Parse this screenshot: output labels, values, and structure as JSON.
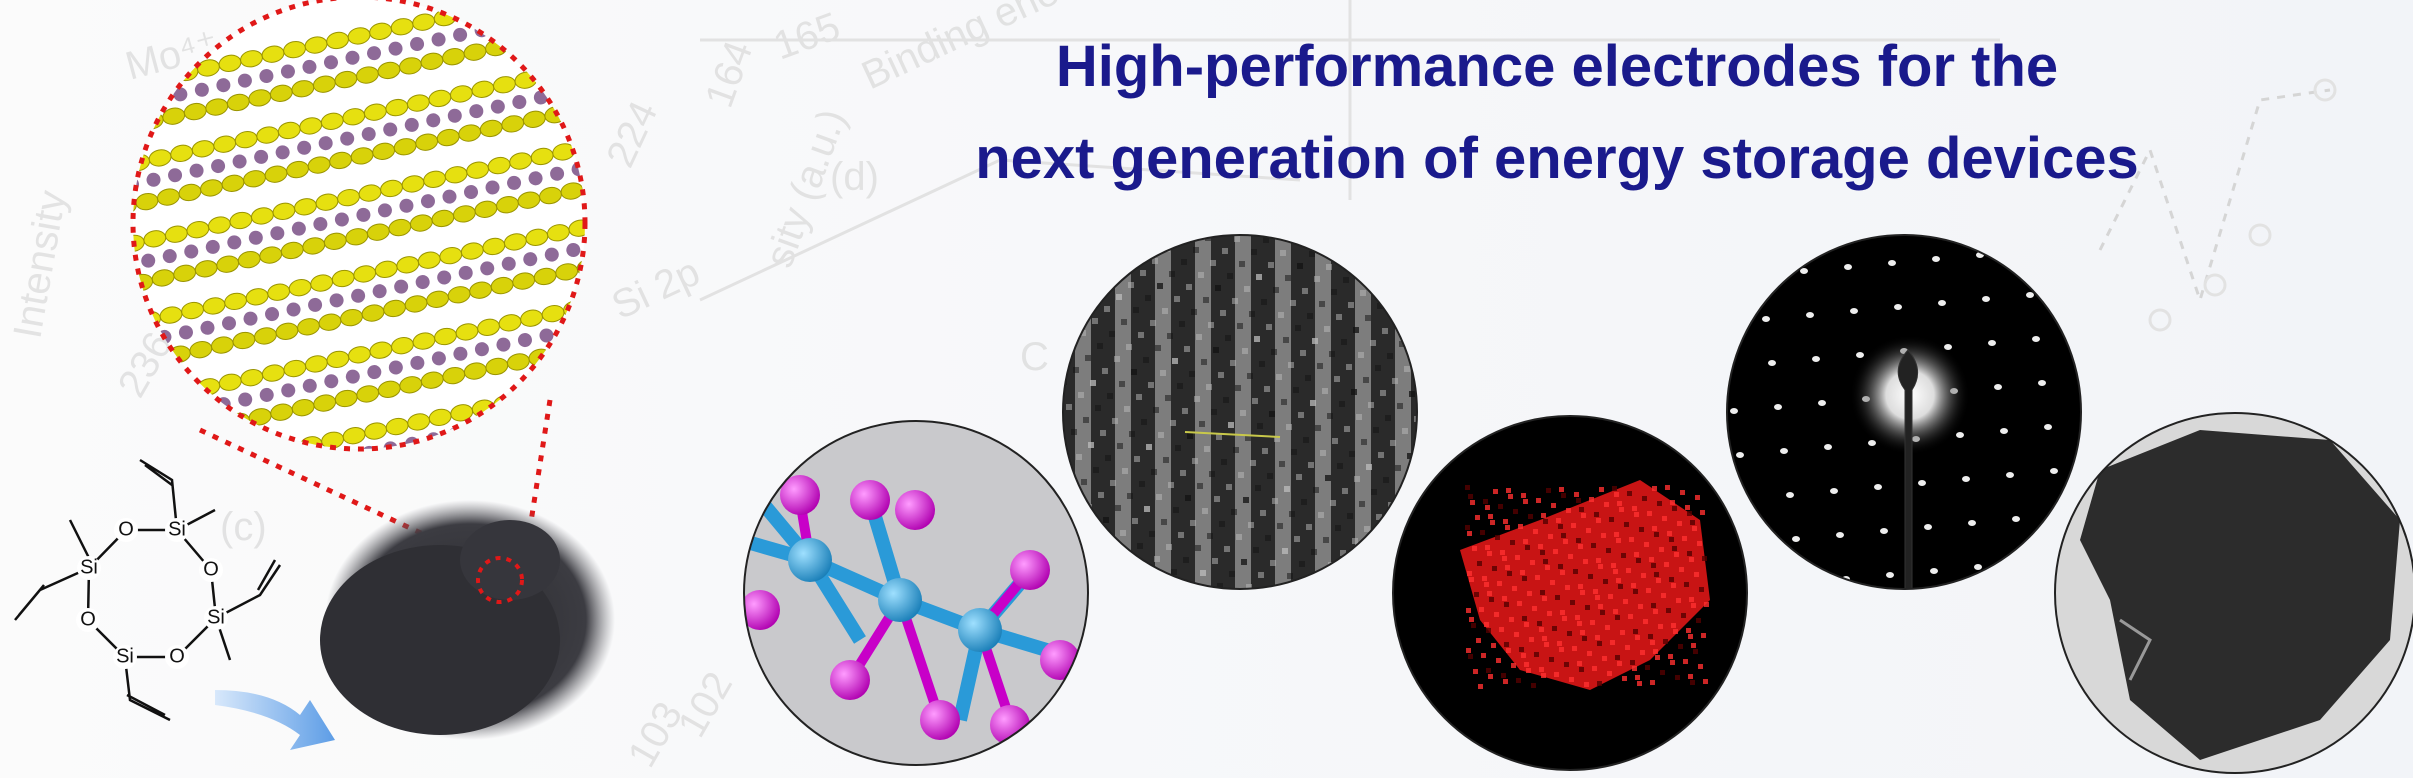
{
  "header": {
    "title_lines": [
      "High-performance electrodes for the",
      "next generation of energy storage devices"
    ]
  },
  "molecule": {
    "atoms": [
      "Si",
      "O",
      "Si",
      "O",
      "Si",
      "O",
      "Si",
      "O"
    ]
  },
  "background_labels": [
    "Mo⁴⁺",
    "Intensity",
    "Binding energ",
    "Si 2p",
    "(d)",
    "(c)",
    "165",
    "164",
    "224",
    "236",
    "102",
    "103",
    "C",
    "sity (a.u.)"
  ]
}
